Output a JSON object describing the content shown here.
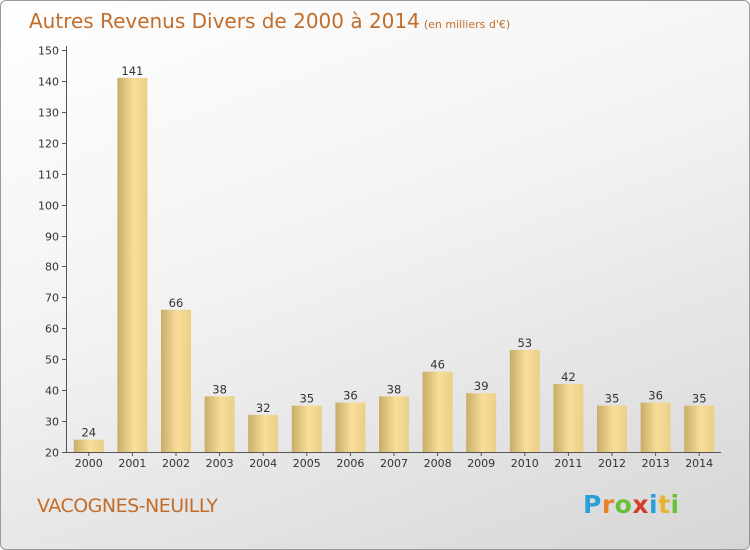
{
  "title": "Autres Revenus Divers de 2000 à 2014",
  "subtitle": "(en milliers d'€)",
  "commune": "VACOGNES-NEUILLY",
  "logo": [
    "P",
    "r",
    "o",
    "x",
    "i",
    "t",
    "i"
  ],
  "colors": {
    "title": "#c26d2a",
    "bar_light": "#f8de98",
    "bar_dark": "#c8ad68",
    "axis": "#555555"
  },
  "chart_data": {
    "type": "bar",
    "title": "Autres Revenus Divers de 2000 à 2014",
    "subtitle": "(en milliers d'€)",
    "xlabel": "",
    "ylabel": "",
    "categories": [
      "2000",
      "2001",
      "2002",
      "2003",
      "2004",
      "2005",
      "2006",
      "2007",
      "2008",
      "2009",
      "2010",
      "2011",
      "2012",
      "2013",
      "2014"
    ],
    "values": [
      24,
      141,
      66,
      38,
      32,
      35,
      36,
      38,
      46,
      39,
      53,
      42,
      35,
      36,
      35
    ],
    "ylim": [
      20,
      150
    ],
    "yticks": [
      20,
      30,
      40,
      50,
      60,
      70,
      80,
      90,
      100,
      110,
      120,
      130,
      140,
      150
    ],
    "grid": false,
    "legend": "none"
  }
}
